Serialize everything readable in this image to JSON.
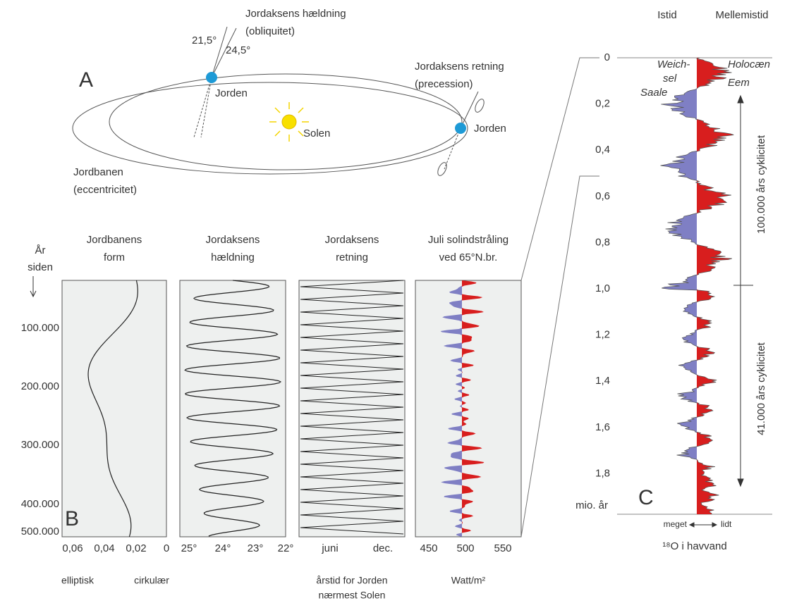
{
  "panel_a": {
    "label": "A",
    "tilt_title": "Jordaksens hældning",
    "tilt_sub": "(obliquitet)",
    "angle_low": "21,5°",
    "angle_high": "24,5°",
    "earth_left": "Jorden",
    "sun": "Solen",
    "earth_right": "Jorden",
    "precession_title": "Jordaksens retning",
    "precession_sub": "(precession)",
    "orbit_title": "Jordbanen",
    "orbit_sub": "(eccentricitet)"
  },
  "panel_b": {
    "label": "B",
    "axis_title": [
      "År",
      "siden"
    ],
    "y_ticks": [
      "100.000",
      "200.000",
      "300.000",
      "400.000",
      "500.000"
    ],
    "columns": [
      {
        "title": [
          "Jordbanens",
          "form"
        ],
        "ticks": [
          "0,06",
          "0,04",
          "0,02",
          "0"
        ],
        "notes": [
          "elliptisk",
          "cirkulær"
        ]
      },
      {
        "title": [
          "Jordaksens",
          "hældning"
        ],
        "ticks": [
          "25°",
          "24°",
          "23°",
          "22°"
        ]
      },
      {
        "title": [
          "Jordaksens",
          "retning"
        ],
        "ticks": [
          "juni",
          "dec."
        ],
        "notes": [
          "årstid for Jorden",
          "nærmest Solen"
        ]
      },
      {
        "title": [
          "Juli solindstråling",
          "ved 65°N.br."
        ],
        "ticks": [
          "450",
          "500",
          "550"
        ],
        "notes": [
          "Watt/m²"
        ]
      }
    ]
  },
  "panel_c": {
    "label": "C",
    "header_left": "Istid",
    "header_right": "Mellemistid",
    "y_ticks": [
      "0",
      "0,2",
      "0,4",
      "0,6",
      "0,8",
      "1,0",
      "1,2",
      "1,4",
      "1,6",
      "1,8"
    ],
    "unit": "mio. år",
    "annotations": [
      "Weich-",
      "sel",
      "Saale",
      "Holocæn",
      "Eem"
    ],
    "cycle_100k": "100.000 års cyklicitet",
    "cycle_41k": "41.000 års cyklicitet",
    "axis_left": "meget",
    "axis_right": "lidt",
    "axis_title": "¹⁸O i havvand"
  }
}
